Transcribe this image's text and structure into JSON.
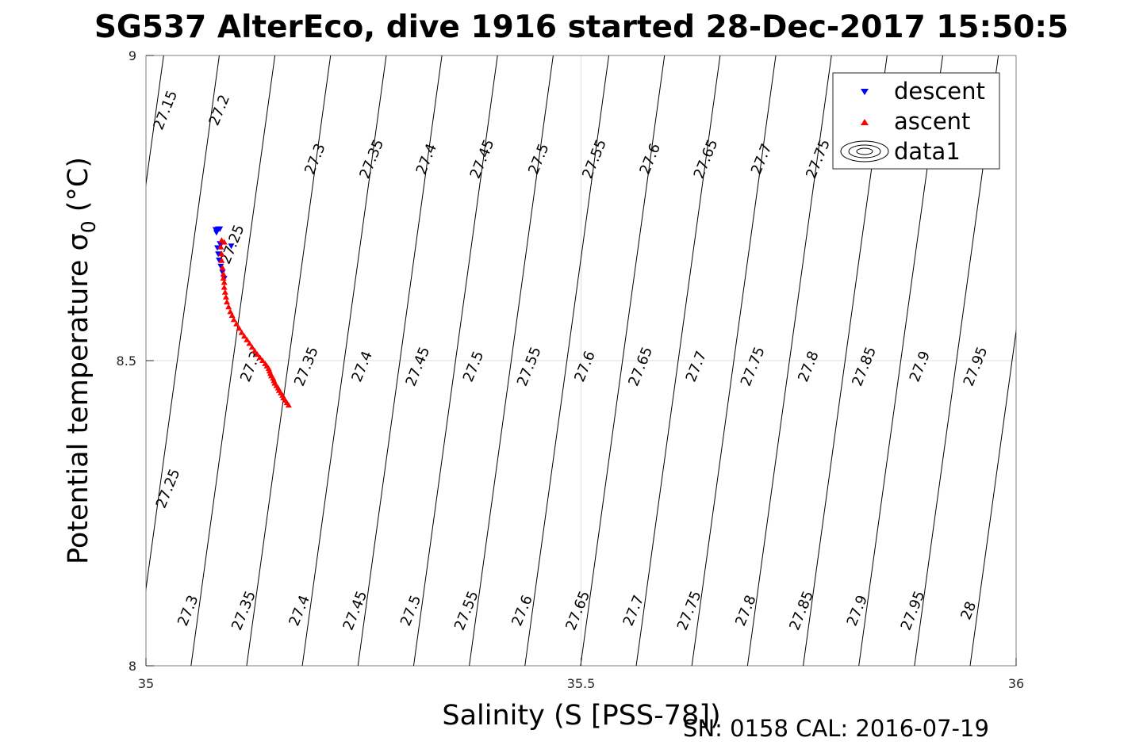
{
  "chart_data": {
    "type": "scatter",
    "title": "SG537 AlterEco, dive 1916 started 28-Dec-2017 15:50:5",
    "xlabel": "Salinity (S [PSS-78])",
    "ylabel_main": "Potential temperature σ",
    "ylabel_sub": "0",
    "ylabel_unit": " (°C)",
    "footer": "SN: 0158  CAL: 2016-07-19",
    "xlim": [
      35,
      36
    ],
    "ylim": [
      8,
      9
    ],
    "xticks": [
      {
        "value": 35,
        "label": "35"
      },
      {
        "value": 35.5,
        "label": "35.5"
      },
      {
        "value": 36,
        "label": "36"
      }
    ],
    "yticks": [
      {
        "value": 8,
        "label": "8"
      },
      {
        "value": 8.5,
        "label": "8.5"
      },
      {
        "value": 9,
        "label": "9"
      }
    ],
    "grid": true,
    "legend": {
      "placement": "top-right",
      "entries": [
        {
          "name": "descent",
          "marker": "triangle-down",
          "color": "#0000ff"
        },
        {
          "name": "ascent",
          "marker": "triangle-up",
          "color": "#ff0000"
        },
        {
          "name": "data1",
          "marker": "contour",
          "color": "#000000"
        }
      ]
    },
    "contours": {
      "levels": [
        27.15,
        27.2,
        27.25,
        27.3,
        27.35,
        27.4,
        27.45,
        27.5,
        27.55,
        27.6,
        27.65,
        27.7,
        27.75,
        27.8,
        27.85,
        27.9,
        27.95,
        28
      ],
      "labels": [
        {
          "text": "27.15",
          "s": 35.023,
          "t": 8.91
        },
        {
          "text": "27.2",
          "s": 35.085,
          "t": 8.91
        },
        {
          "text": "27.25",
          "s": 35.1,
          "t": 8.69
        },
        {
          "text": "27.3",
          "s": 35.195,
          "t": 8.83
        },
        {
          "text": "27.35",
          "s": 35.26,
          "t": 8.83
        },
        {
          "text": "27.4",
          "s": 35.323,
          "t": 8.83
        },
        {
          "text": "27.45",
          "s": 35.387,
          "t": 8.83
        },
        {
          "text": "27.5",
          "s": 35.452,
          "t": 8.83
        },
        {
          "text": "27.55",
          "s": 35.516,
          "t": 8.83
        },
        {
          "text": "27.6",
          "s": 35.58,
          "t": 8.83
        },
        {
          "text": "27.65",
          "s": 35.644,
          "t": 8.83
        },
        {
          "text": "27.7",
          "s": 35.708,
          "t": 8.83
        },
        {
          "text": "27.75",
          "s": 35.773,
          "t": 8.83
        },
        {
          "text": "27.3",
          "s": 35.121,
          "t": 8.49
        },
        {
          "text": "27.35",
          "s": 35.185,
          "t": 8.49
        },
        {
          "text": "27.4",
          "s": 35.249,
          "t": 8.49
        },
        {
          "text": "27.45",
          "s": 35.313,
          "t": 8.49
        },
        {
          "text": "27.5",
          "s": 35.377,
          "t": 8.49
        },
        {
          "text": "27.55",
          "s": 35.441,
          "t": 8.49
        },
        {
          "text": "27.6",
          "s": 35.505,
          "t": 8.49
        },
        {
          "text": "27.65",
          "s": 35.569,
          "t": 8.49
        },
        {
          "text": "27.7",
          "s": 35.633,
          "t": 8.49
        },
        {
          "text": "27.75",
          "s": 35.698,
          "t": 8.49
        },
        {
          "text": "27.8",
          "s": 35.762,
          "t": 8.49
        },
        {
          "text": "27.85",
          "s": 35.826,
          "t": 8.49
        },
        {
          "text": "27.9",
          "s": 35.89,
          "t": 8.49
        },
        {
          "text": "27.95",
          "s": 35.954,
          "t": 8.49
        },
        {
          "text": "27.25",
          "s": 35.026,
          "t": 8.29
        },
        {
          "text": "27.3",
          "s": 35.049,
          "t": 8.09
        },
        {
          "text": "27.35",
          "s": 35.113,
          "t": 8.09
        },
        {
          "text": "27.4",
          "s": 35.177,
          "t": 8.09
        },
        {
          "text": "27.45",
          "s": 35.241,
          "t": 8.09
        },
        {
          "text": "27.5",
          "s": 35.305,
          "t": 8.09
        },
        {
          "text": "27.55",
          "s": 35.369,
          "t": 8.09
        },
        {
          "text": "27.6",
          "s": 35.433,
          "t": 8.09
        },
        {
          "text": "27.65",
          "s": 35.497,
          "t": 8.09
        },
        {
          "text": "27.7",
          "s": 35.561,
          "t": 8.09
        },
        {
          "text": "27.75",
          "s": 35.625,
          "t": 8.09
        },
        {
          "text": "27.8",
          "s": 35.69,
          "t": 8.09
        },
        {
          "text": "27.85",
          "s": 35.754,
          "t": 8.09
        },
        {
          "text": "27.9",
          "s": 35.818,
          "t": 8.09
        },
        {
          "text": "27.95",
          "s": 35.882,
          "t": 8.09
        },
        {
          "text": "28",
          "s": 35.946,
          "t": 8.09
        }
      ]
    },
    "series": [
      {
        "name": "descent",
        "color": "#0000ff",
        "marker": "triangle-down",
        "points": [
          [
            35.098,
            8.688
          ],
          [
            35.085,
            8.692
          ],
          [
            35.082,
            8.685
          ],
          [
            35.083,
            8.675
          ],
          [
            35.084,
            8.665
          ],
          [
            35.086,
            8.655
          ],
          [
            35.088,
            8.645
          ],
          [
            35.09,
            8.635
          ],
          [
            35.086,
            8.69
          ],
          [
            35.081,
            8.71
          ],
          [
            35.08,
            8.715
          ],
          [
            35.083,
            8.716
          ],
          [
            35.085,
            8.716
          ]
        ]
      },
      {
        "name": "ascent",
        "color": "#ff0000",
        "marker": "triangle-up",
        "points": [
          [
            35.164,
            8.427
          ],
          [
            35.162,
            8.431
          ],
          [
            35.16,
            8.435
          ],
          [
            35.158,
            8.439
          ],
          [
            35.157,
            8.443
          ],
          [
            35.155,
            8.447
          ],
          [
            35.153,
            8.451
          ],
          [
            35.152,
            8.455
          ],
          [
            35.15,
            8.459
          ],
          [
            35.148,
            8.463
          ],
          [
            35.147,
            8.467
          ],
          [
            35.146,
            8.471
          ],
          [
            35.144,
            8.475
          ],
          [
            35.143,
            8.479
          ],
          [
            35.142,
            8.483
          ],
          [
            35.141,
            8.487
          ],
          [
            35.139,
            8.491
          ],
          [
            35.137,
            8.495
          ],
          [
            35.134,
            8.5
          ],
          [
            35.131,
            8.505
          ],
          [
            35.128,
            8.51
          ],
          [
            35.125,
            8.516
          ],
          [
            35.122,
            8.522
          ],
          [
            35.119,
            8.528
          ],
          [
            35.116,
            8.534
          ],
          [
            35.113,
            8.54
          ],
          [
            35.11,
            8.546
          ],
          [
            35.107,
            8.553
          ],
          [
            35.104,
            8.56
          ],
          [
            35.101,
            8.567
          ],
          [
            35.099,
            8.574
          ],
          [
            35.097,
            8.58
          ],
          [
            35.095,
            8.588
          ],
          [
            35.093,
            8.596
          ],
          [
            35.092,
            8.604
          ],
          [
            35.091,
            8.612
          ],
          [
            35.09,
            8.62
          ],
          [
            35.09,
            8.628
          ],
          [
            35.089,
            8.635
          ],
          [
            35.089,
            8.642
          ],
          [
            35.088,
            8.652
          ],
          [
            35.087,
            8.664
          ],
          [
            35.087,
            8.675
          ],
          [
            35.086,
            8.686
          ],
          [
            35.09,
            8.694
          ],
          [
            35.087,
            8.697
          ]
        ]
      }
    ]
  }
}
